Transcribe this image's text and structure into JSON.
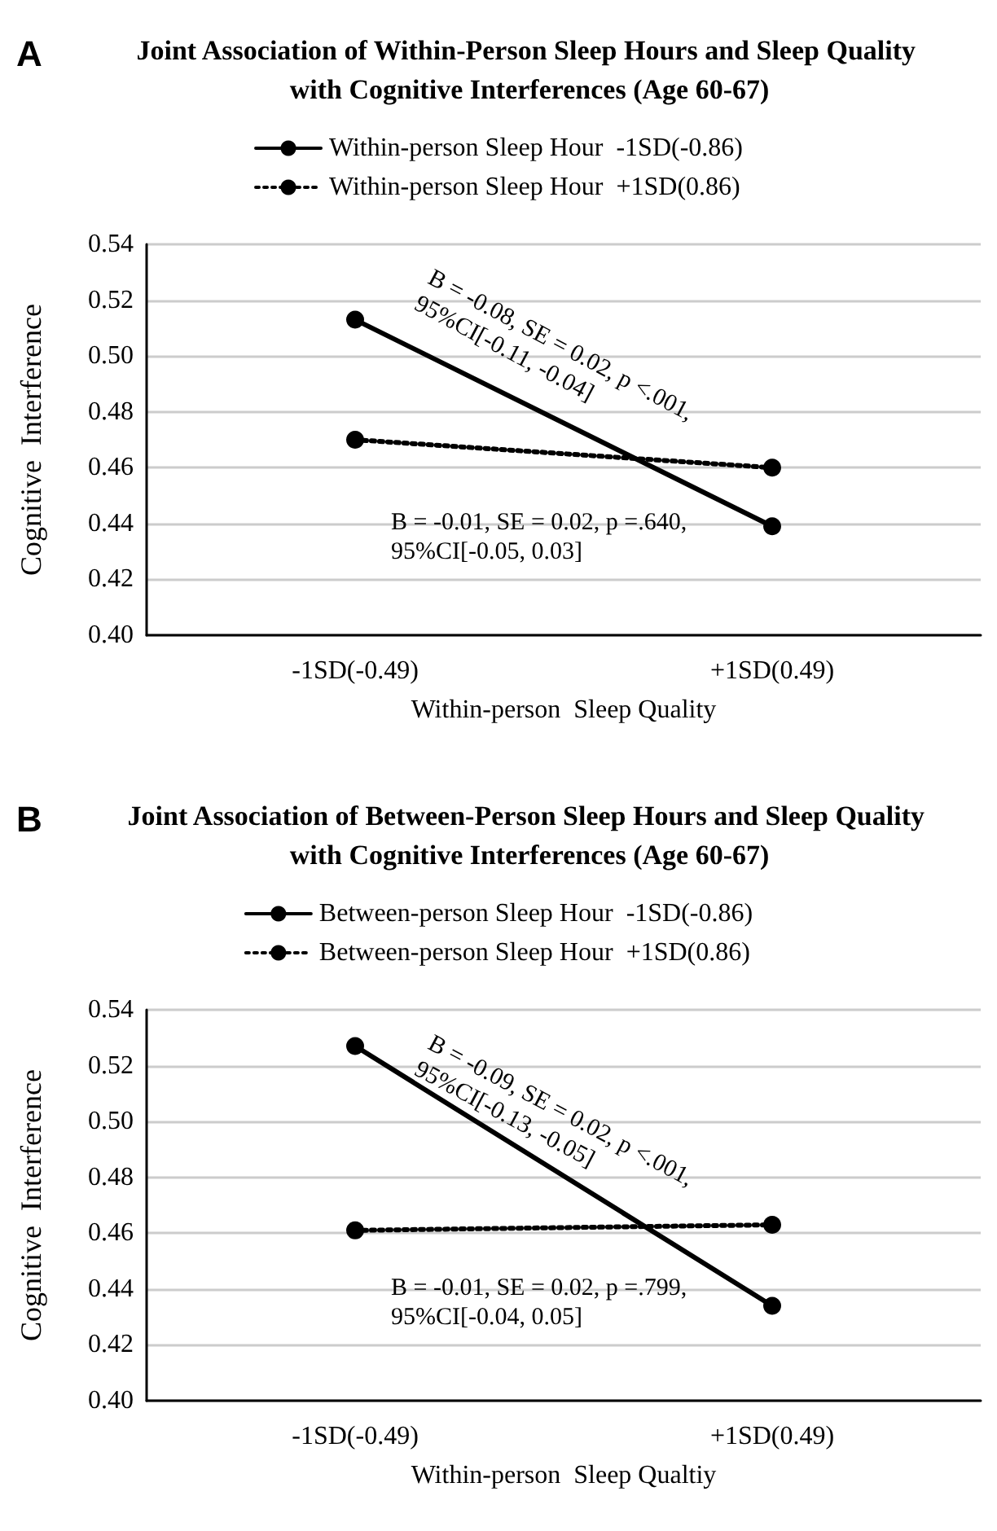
{
  "chart_data": [
    {
      "type": "line",
      "title": "Joint Association of Within-Person Sleep Hours and Sleep Quality with Cognitive Interferences (Age 60-67)",
      "xlabel": "Within-person  Sleep Quality",
      "ylabel": "Cognitive  Interference",
      "categories": [
        "-1SD(-0.49)",
        "+1SD(0.49)"
      ],
      "series": [
        {
          "name": "Within-person Sleep Hour  -1SD(-0.86)",
          "color": "#000000",
          "line_style": "solid",
          "values": [
            0.513,
            0.439
          ]
        },
        {
          "name": "Within-person Sleep Hour  +1SD(0.86)",
          "color": "#000000",
          "line_style": "dotted",
          "values": [
            0.47,
            0.46
          ]
        }
      ],
      "ylim": [
        0.4,
        0.54
      ],
      "yticks": [
        {
          "value": 0.4,
          "label": "0.40"
        },
        {
          "value": 0.42,
          "label": "0.42"
        },
        {
          "value": 0.44,
          "label": "0.44"
        },
        {
          "value": 0.46,
          "label": "0.46"
        },
        {
          "value": 0.48,
          "label": "0.48"
        },
        {
          "value": 0.5,
          "label": "0.50"
        },
        {
          "value": 0.52,
          "label": "0.52"
        },
        {
          "value": 0.54,
          "label": "0.54"
        }
      ],
      "grid": "y",
      "legend": "top",
      "marker": "circle",
      "annotations": [
        "A",
        "B = -0.08, SE = 0.02, p <.001,\n95%CI[-0.11, -0.04]",
        "B = -0.01, SE = 0.02, p =.640,\n95%CI[-0.05, 0.03]"
      ]
    },
    {
      "type": "line",
      "title": "Joint Association of Between-Person Sleep Hours and Sleep Quality with Cognitive Interferences (Age 60-67)",
      "xlabel": "Within-person  Sleep Qualtiy",
      "ylabel": "Cognitive  Interference",
      "categories": [
        "-1SD(-0.49)",
        "+1SD(0.49)"
      ],
      "series": [
        {
          "name": "Between-person Sleep Hour  -1SD(-0.86)",
          "color": "#000000",
          "line_style": "solid",
          "values": [
            0.527,
            0.434
          ]
        },
        {
          "name": "Between-person Sleep Hour  +1SD(0.86)",
          "color": "#000000",
          "line_style": "dotted",
          "values": [
            0.461,
            0.463
          ]
        }
      ],
      "ylim": [
        0.4,
        0.54
      ],
      "yticks": [
        {
          "value": 0.4,
          "label": "0.40"
        },
        {
          "value": 0.42,
          "label": "0.42"
        },
        {
          "value": 0.44,
          "label": "0.44"
        },
        {
          "value": 0.46,
          "label": "0.46"
        },
        {
          "value": 0.48,
          "label": "0.48"
        },
        {
          "value": 0.5,
          "label": "0.50"
        },
        {
          "value": 0.52,
          "label": "0.52"
        },
        {
          "value": 0.54,
          "label": "0.54"
        }
      ],
      "grid": "y",
      "legend": "top",
      "marker": "circle",
      "annotations": [
        "B",
        "B = -0.09, SE = 0.02, p <.001,\n95%CI[-0.13, -0.05]",
        "B = -0.01, SE = 0.02, p =.799,\n95%CI[-0.04, 0.05]"
      ]
    }
  ]
}
